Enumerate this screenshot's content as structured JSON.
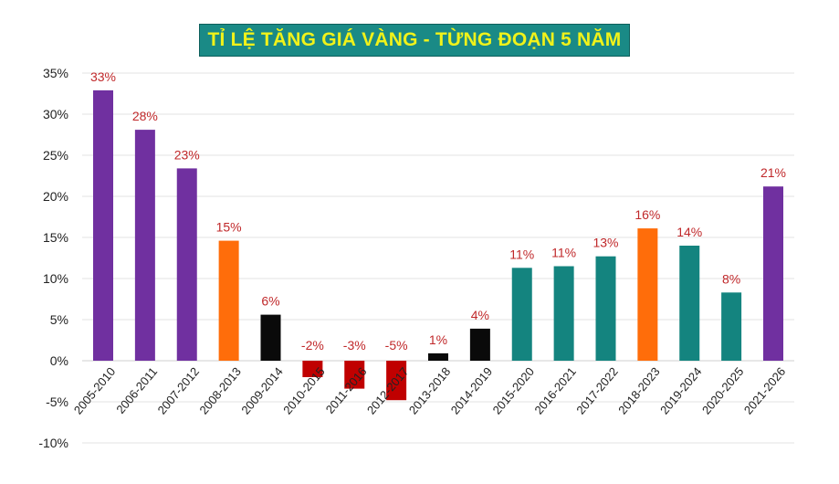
{
  "colors": {
    "purple": "#7030a0",
    "orange": "#ff6d0a",
    "black": "#0a0a0a",
    "red": "#c00000",
    "teal": "#14847f",
    "label_red": "#c0282a",
    "title_bg": "#1a8a86",
    "title_text": "#f0f21a",
    "grid": "#e3e3e3"
  },
  "chart_data": {
    "type": "bar",
    "title": "TỈ LỆ TĂNG GIÁ VÀNG - TỪNG ĐOẠN 5 NĂM",
    "xlabel": "",
    "ylabel": "",
    "ylim": [
      -10,
      35
    ],
    "yticks": [
      -10,
      -5,
      0,
      5,
      10,
      15,
      20,
      25,
      30,
      35
    ],
    "ytick_labels": [
      "-10%",
      "-5%",
      "0%",
      "5%",
      "10%",
      "15%",
      "20%",
      "25%",
      "30%",
      "35%"
    ],
    "grid": true,
    "legend": "none",
    "categories": [
      "2005-2010",
      "2006-2011",
      "2007-2012",
      "2008-2013",
      "2009-2014",
      "2010-2015",
      "2011-2016",
      "2012-2017",
      "2013-2018",
      "2014-2019",
      "2015-2020",
      "2016-2021",
      "2017-2022",
      "2018-2023",
      "2019-2024",
      "2020-2025",
      "2021-2026"
    ],
    "values": [
      32.9,
      28.1,
      23.4,
      14.6,
      5.6,
      -2.0,
      -3.4,
      -4.8,
      0.9,
      3.9,
      11.3,
      11.5,
      12.7,
      16.1,
      14.0,
      8.3,
      21.2
    ],
    "data_labels": [
      "33%",
      "28%",
      "23%",
      "15%",
      "6%",
      "-2%",
      "-3%",
      "-5%",
      "1%",
      "4%",
      "11%",
      "11%",
      "13%",
      "16%",
      "14%",
      "8%",
      "21%"
    ],
    "bar_colors": [
      "purple",
      "purple",
      "purple",
      "orange",
      "black",
      "red",
      "red",
      "red",
      "black",
      "black",
      "teal",
      "teal",
      "teal",
      "orange",
      "teal",
      "teal",
      "purple"
    ]
  }
}
